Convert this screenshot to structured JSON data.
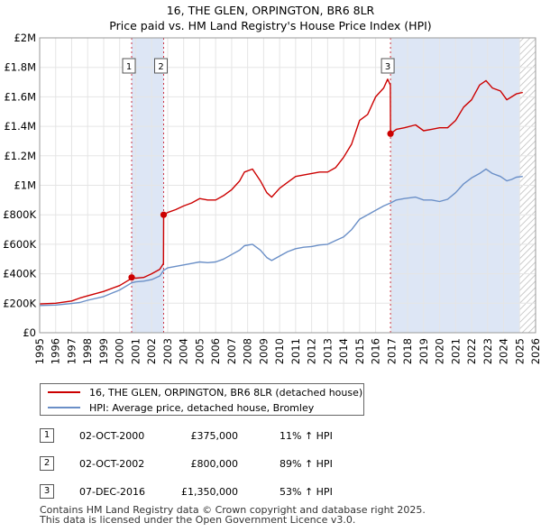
{
  "title_line1": "16, THE GLEN, ORPINGTON, BR6 8LR",
  "title_line2": "Price paid vs. HM Land Registry's House Price Index (HPI)",
  "colors": {
    "property": "#cc0000",
    "hpi": "#6a8fc7",
    "shade": "#dde6f5",
    "hatch": "#bbbbbb",
    "marker_line": "#cc3344",
    "grid": "#e5e5e5"
  },
  "chart_data": {
    "type": "line",
    "title": "16, THE GLEN, ORPINGTON, BR6 8LR — Price paid vs. HM Land Registry's House Price Index (HPI)",
    "xlim": [
      1995,
      2026
    ],
    "ylim": [
      0,
      2000000
    ],
    "y_ticks": [
      0,
      200000,
      400000,
      600000,
      800000,
      1000000,
      1200000,
      1400000,
      1600000,
      1800000,
      2000000
    ],
    "y_tick_labels": [
      "£0",
      "£200K",
      "£400K",
      "£600K",
      "£800K",
      "£1M",
      "£1.2M",
      "£1.4M",
      "£1.6M",
      "£1.8M",
      "£2M"
    ],
    "x_ticks": [
      1995,
      1996,
      1997,
      1998,
      1999,
      2000,
      2001,
      2002,
      2003,
      2004,
      2005,
      2006,
      2007,
      2008,
      2009,
      2010,
      2011,
      2012,
      2013,
      2014,
      2015,
      2016,
      2017,
      2018,
      2019,
      2020,
      2021,
      2022,
      2023,
      2024,
      2025,
      2026
    ],
    "x_tick_labels": [
      "1995",
      "1996",
      "1997",
      "1998",
      "1999",
      "2000",
      "2001",
      "2002",
      "2003",
      "2004",
      "2005",
      "2006",
      "2007",
      "2008",
      "2009",
      "2010",
      "2011",
      "2012",
      "2013",
      "2014",
      "2015",
      "2016",
      "2017",
      "2018",
      "2019",
      "2020",
      "2021",
      "2022",
      "2023",
      "2024",
      "2025",
      "2026"
    ],
    "shaded_periods": [
      [
        2000.75,
        2002.75
      ],
      [
        2016.93,
        2025.0
      ]
    ],
    "forecast_hatch_start": 2025.0,
    "series": [
      {
        "name": "16, THE GLEN, ORPINGTON, BR6 8LR (detached house)",
        "x": [
          1995.0,
          1996.0,
          1997.0,
          1997.5,
          1998.0,
          1999.0,
          2000.0,
          2000.74,
          2000.75,
          2001.0,
          2001.5,
          2002.0,
          2002.5,
          2002.74,
          2002.75,
          2003.0,
          2003.5,
          2004.0,
          2004.5,
          2005.0,
          2005.5,
          2006.0,
          2006.5,
          2007.0,
          2007.5,
          2007.8,
          2008.3,
          2008.8,
          2009.2,
          2009.5,
          2010.0,
          2010.5,
          2011.0,
          2011.5,
          2012.0,
          2012.5,
          2013.0,
          2013.5,
          2014.0,
          2014.5,
          2015.0,
          2015.5,
          2016.0,
          2016.5,
          2016.75,
          2016.92,
          2016.93,
          2017.3,
          2017.8,
          2018.5,
          2019.0,
          2019.5,
          2020.0,
          2020.5,
          2021.0,
          2021.5,
          2022.0,
          2022.5,
          2022.9,
          2023.3,
          2023.8,
          2024.2,
          2024.5,
          2024.8,
          2025.2
        ],
        "values": [
          195000,
          200000,
          215000,
          235000,
          250000,
          280000,
          320000,
          368000,
          375000,
          370000,
          375000,
          400000,
          430000,
          470000,
          800000,
          815000,
          835000,
          860000,
          880000,
          910000,
          900000,
          900000,
          930000,
          970000,
          1030000,
          1090000,
          1110000,
          1030000,
          950000,
          920000,
          980000,
          1020000,
          1060000,
          1070000,
          1080000,
          1090000,
          1090000,
          1120000,
          1190000,
          1280000,
          1440000,
          1480000,
          1600000,
          1660000,
          1720000,
          1680000,
          1350000,
          1380000,
          1390000,
          1410000,
          1370000,
          1380000,
          1390000,
          1390000,
          1440000,
          1530000,
          1580000,
          1680000,
          1710000,
          1660000,
          1640000,
          1580000,
          1600000,
          1620000,
          1630000
        ]
      },
      {
        "name": "HPI: Average price, detached house, Bromley",
        "x": [
          1995.0,
          1996.0,
          1997.0,
          1997.5,
          1998.0,
          1999.0,
          2000.0,
          2000.75,
          2001.0,
          2001.5,
          2002.0,
          2002.5,
          2002.75,
          2003.0,
          2003.5,
          2004.0,
          2004.5,
          2005.0,
          2005.5,
          2006.0,
          2006.5,
          2007.0,
          2007.5,
          2007.8,
          2008.3,
          2008.8,
          2009.2,
          2009.5,
          2010.0,
          2010.5,
          2011.0,
          2011.5,
          2012.0,
          2012.5,
          2013.0,
          2013.5,
          2014.0,
          2014.5,
          2015.0,
          2015.5,
          2016.0,
          2016.5,
          2016.93,
          2017.3,
          2017.8,
          2018.5,
          2019.0,
          2019.5,
          2020.0,
          2020.5,
          2021.0,
          2021.5,
          2022.0,
          2022.5,
          2022.9,
          2023.3,
          2023.8,
          2024.2,
          2024.5,
          2024.8,
          2025.2
        ],
        "values": [
          185000,
          188000,
          198000,
          205000,
          220000,
          245000,
          290000,
          338000,
          345000,
          350000,
          360000,
          385000,
          423000,
          440000,
          450000,
          460000,
          470000,
          480000,
          475000,
          480000,
          500000,
          530000,
          560000,
          590000,
          600000,
          560000,
          510000,
          490000,
          520000,
          550000,
          570000,
          580000,
          585000,
          595000,
          600000,
          625000,
          650000,
          700000,
          770000,
          800000,
          830000,
          860000,
          880000,
          900000,
          910000,
          920000,
          900000,
          900000,
          890000,
          905000,
          950000,
          1010000,
          1050000,
          1080000,
          1110000,
          1080000,
          1060000,
          1030000,
          1040000,
          1055000,
          1060000
        ]
      }
    ],
    "transactions": [
      {
        "id": "1",
        "x": 2000.75,
        "value": 375000
      },
      {
        "id": "2",
        "x": 2002.75,
        "value": 800000
      },
      {
        "id": "3",
        "x": 2016.93,
        "value": 1350000
      }
    ]
  },
  "legend": {
    "property_label": "16, THE GLEN, ORPINGTON, BR6 8LR (detached house)",
    "hpi_label": "HPI: Average price, detached house, Bromley"
  },
  "transactions_table": [
    {
      "id": "1",
      "date": "02-OCT-2000",
      "price": "£375,000",
      "hpi_change": "11% ↑ HPI"
    },
    {
      "id": "2",
      "date": "02-OCT-2002",
      "price": "£800,000",
      "hpi_change": "89% ↑ HPI"
    },
    {
      "id": "3",
      "date": "07-DEC-2016",
      "price": "£1,350,000",
      "hpi_change": "53% ↑ HPI"
    }
  ],
  "footer": {
    "line1": "Contains HM Land Registry data © Crown copyright and database right 2025.",
    "line2": "This data is licensed under the Open Government Licence v3.0."
  }
}
